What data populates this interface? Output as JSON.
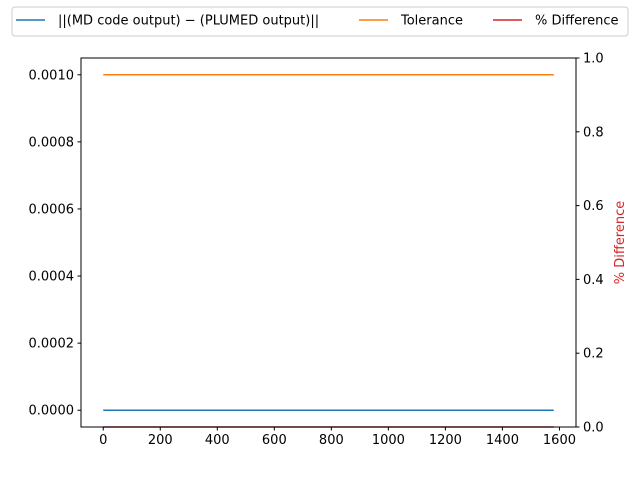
{
  "chart_data": {
    "type": "line",
    "x": [
      0,
      1580
    ],
    "series": [
      {
        "name": "||(MD code output) − (PLUMED output)||",
        "axis": "left",
        "color": "#1f77b4",
        "values": [
          0,
          0
        ]
      },
      {
        "name": "Tolerance",
        "axis": "left",
        "color": "#ff7f0e",
        "values": [
          0.001,
          0.001
        ]
      },
      {
        "name": "% Difference",
        "axis": "right",
        "color": "#d62728",
        "values": [
          0,
          0
        ]
      }
    ],
    "xlim": [
      -78,
      1658
    ],
    "ylim": [
      -5e-05,
      0.00105
    ],
    "y2lim": [
      0,
      1
    ],
    "x_ticks": [
      0,
      200,
      400,
      600,
      800,
      1000,
      1200,
      1400,
      1600
    ],
    "y_ticks": [
      0,
      0.0002,
      0.0004,
      0.0006,
      0.0008,
      0.001
    ],
    "y_tick_labels": [
      "0.0000",
      "0.0002",
      "0.0004",
      "0.0006",
      "0.0008",
      "0.0010"
    ],
    "y2_ticks": [
      0,
      0.2,
      0.4,
      0.6,
      0.8,
      1.0
    ],
    "y2_tick_labels": [
      "0.0",
      "0.2",
      "0.4",
      "0.6",
      "0.8",
      "1.0"
    ],
    "y2label": "% Difference",
    "y2label_color": "#d62728",
    "grid": false,
    "legend": "top, above axes, 3 columns"
  }
}
